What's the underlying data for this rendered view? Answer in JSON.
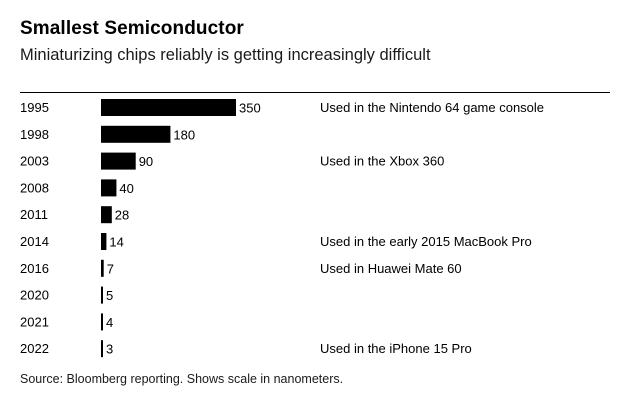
{
  "title": "Smallest Semiconductor",
  "subtitle": "Miniaturizing chips reliably is getting increasingly difficult",
  "source": "Source: Bloomberg reporting. Shows scale in nanometers.",
  "colors": {
    "bar": "#000000",
    "text": "#000000",
    "background": "#ffffff"
  },
  "chart_data": {
    "type": "bar",
    "orientation": "horizontal",
    "categories": [
      "1995",
      "1998",
      "2003",
      "2008",
      "2011",
      "2014",
      "2016",
      "2020",
      "2021",
      "2022"
    ],
    "values": [
      350,
      180,
      90,
      40,
      28,
      14,
      7,
      5,
      4,
      3
    ],
    "annotations": [
      "Used in the Nintendo 64 game console",
      "",
      "Used in the Xbox 360",
      "",
      "",
      "Used in the early 2015 MacBook Pro",
      "Used in Huawei Mate 60",
      "",
      "",
      "Used in the iPhone 15 Pro"
    ],
    "title": "Smallest Semiconductor",
    "xlabel": "",
    "ylabel": "",
    "xlim": [
      0,
      350
    ],
    "grid": false,
    "legend": "none"
  }
}
